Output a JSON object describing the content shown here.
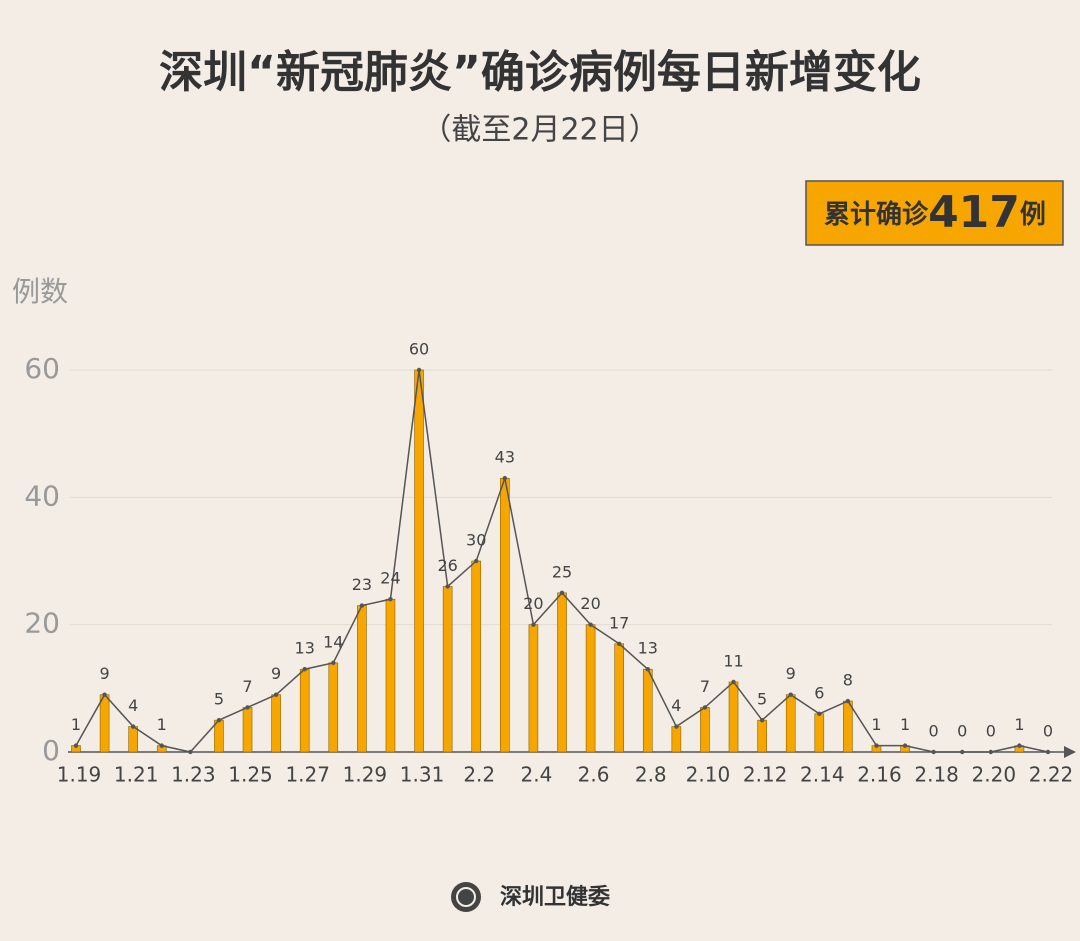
{
  "chart_data": {
    "type": "bar-line",
    "title": "深圳“新冠肺炎”确诊病例每日新增变化",
    "subtitle": "（截至2月22日）",
    "total_prefix": "累计确诊",
    "total_value": 417,
    "total_suffix": "例",
    "y_label": "例数",
    "source": "深圳卫健委",
    "categories": [
      "1.19",
      null,
      "1.21",
      null,
      "1.23",
      null,
      "1.25",
      null,
      "1.27",
      null,
      "1.29",
      null,
      "1.31",
      null,
      "2.2",
      null,
      "2.4",
      null,
      "2.6",
      null,
      "2.8",
      null,
      "2.10",
      null,
      "2.12",
      null,
      "2.14",
      null,
      "2.16",
      null,
      "2.18",
      null,
      "2.20",
      null,
      "2.22"
    ],
    "values": [
      1,
      9,
      4,
      1,
      0,
      5,
      7,
      9,
      13,
      14,
      23,
      24,
      60,
      26,
      30,
      43,
      20,
      25,
      20,
      17,
      13,
      4,
      7,
      11,
      5,
      9,
      6,
      8,
      1,
      1,
      0,
      0,
      0,
      1,
      0
    ],
    "value_labels": [
      "1",
      "9",
      "4",
      "1",
      null,
      "5",
      "7",
      "9",
      "13",
      "14",
      "23",
      "24",
      "60",
      "26",
      "30",
      "43",
      "20",
      "25",
      "20",
      "17",
      "13",
      "4",
      "7",
      "11",
      "5",
      "9",
      "6",
      "8",
      "1",
      "1",
      "0",
      "0",
      "0",
      "1",
      "0"
    ],
    "color": "#f7a600",
    "line_color": "#555555",
    "ylim": [
      0,
      60
    ],
    "yticks": [
      0,
      20,
      40,
      60
    ],
    "grid": true
  }
}
